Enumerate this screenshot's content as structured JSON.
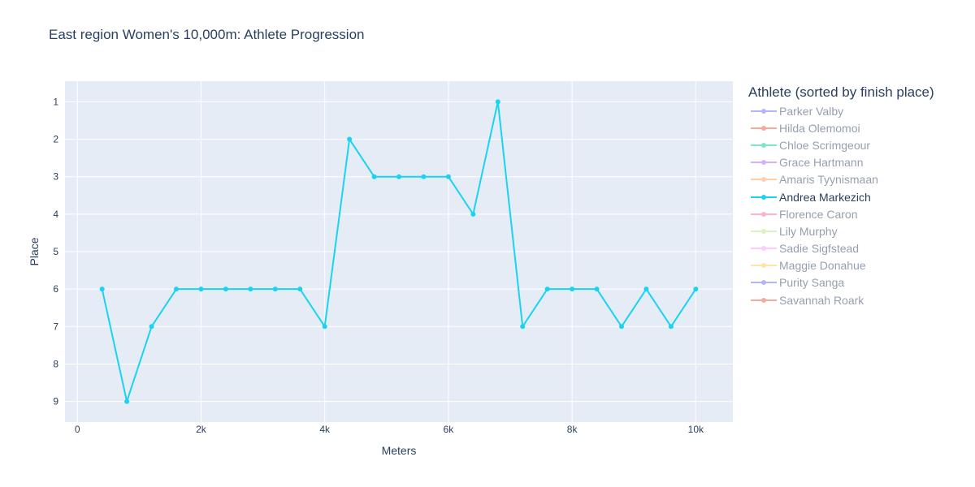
{
  "chart_data": {
    "type": "line",
    "title": "East region Women's 10,000m: Athlete Progression",
    "xlabel": "Meters",
    "ylabel": "Place",
    "xlim": [
      -200,
      10600
    ],
    "ylim": [
      9.55,
      0.45
    ],
    "y_reversed": true,
    "grid": true,
    "plot_background": "#e5ecf6",
    "x_ticks": [
      {
        "value": 0,
        "label": "0"
      },
      {
        "value": 2000,
        "label": "2k"
      },
      {
        "value": 4000,
        "label": "4k"
      },
      {
        "value": 6000,
        "label": "6k"
      },
      {
        "value": 8000,
        "label": "8k"
      },
      {
        "value": 10000,
        "label": "10k"
      }
    ],
    "y_ticks": [
      {
        "value": 1,
        "label": "1"
      },
      {
        "value": 2,
        "label": "2"
      },
      {
        "value": 3,
        "label": "3"
      },
      {
        "value": 4,
        "label": "4"
      },
      {
        "value": 5,
        "label": "5"
      },
      {
        "value": 6,
        "label": "6"
      },
      {
        "value": 7,
        "label": "7"
      },
      {
        "value": 8,
        "label": "8"
      },
      {
        "value": 9,
        "label": "9"
      }
    ],
    "legend": {
      "title": "Athlete (sorted by finish place)",
      "placement": "right",
      "items": [
        {
          "name": "Parker Valby",
          "color": "#636efa",
          "active": false
        },
        {
          "name": "Hilda Olemomoi",
          "color": "#ef553b",
          "active": false
        },
        {
          "name": "Chloe Scrimgeour",
          "color": "#00cc96",
          "active": false
        },
        {
          "name": "Grace Hartmann",
          "color": "#ab63fa",
          "active": false
        },
        {
          "name": "Amaris Tyynismaan",
          "color": "#ffa15a",
          "active": false
        },
        {
          "name": "Andrea Markezich",
          "color": "#19d3f3",
          "active": true
        },
        {
          "name": "Florence Caron",
          "color": "#ff6692",
          "active": false
        },
        {
          "name": "Lily Murphy",
          "color": "#b6e880",
          "active": false
        },
        {
          "name": "Sadie Sigfstead",
          "color": "#ff97ff",
          "active": false
        },
        {
          "name": "Maggie Donahue",
          "color": "#fecb52",
          "active": false
        },
        {
          "name": "Purity Sanga",
          "color": "#636efa",
          "active": false
        },
        {
          "name": "Savannah Roark",
          "color": "#ef553b",
          "active": false
        }
      ]
    },
    "series": [
      {
        "name": "Andrea Markezich",
        "color": "#19d3f3",
        "x": [
          400,
          800,
          1200,
          1600,
          2000,
          2400,
          2800,
          3200,
          3600,
          4000,
          4400,
          4800,
          5200,
          5600,
          6000,
          6400,
          6800,
          7200,
          7600,
          8000,
          8400,
          8800,
          9200,
          9600,
          10000
        ],
        "y": [
          6,
          9,
          7,
          6,
          6,
          6,
          6,
          6,
          6,
          7,
          2,
          3,
          3,
          3,
          3,
          4,
          1,
          7,
          6,
          6,
          6,
          7,
          6,
          7,
          6
        ]
      }
    ]
  }
}
